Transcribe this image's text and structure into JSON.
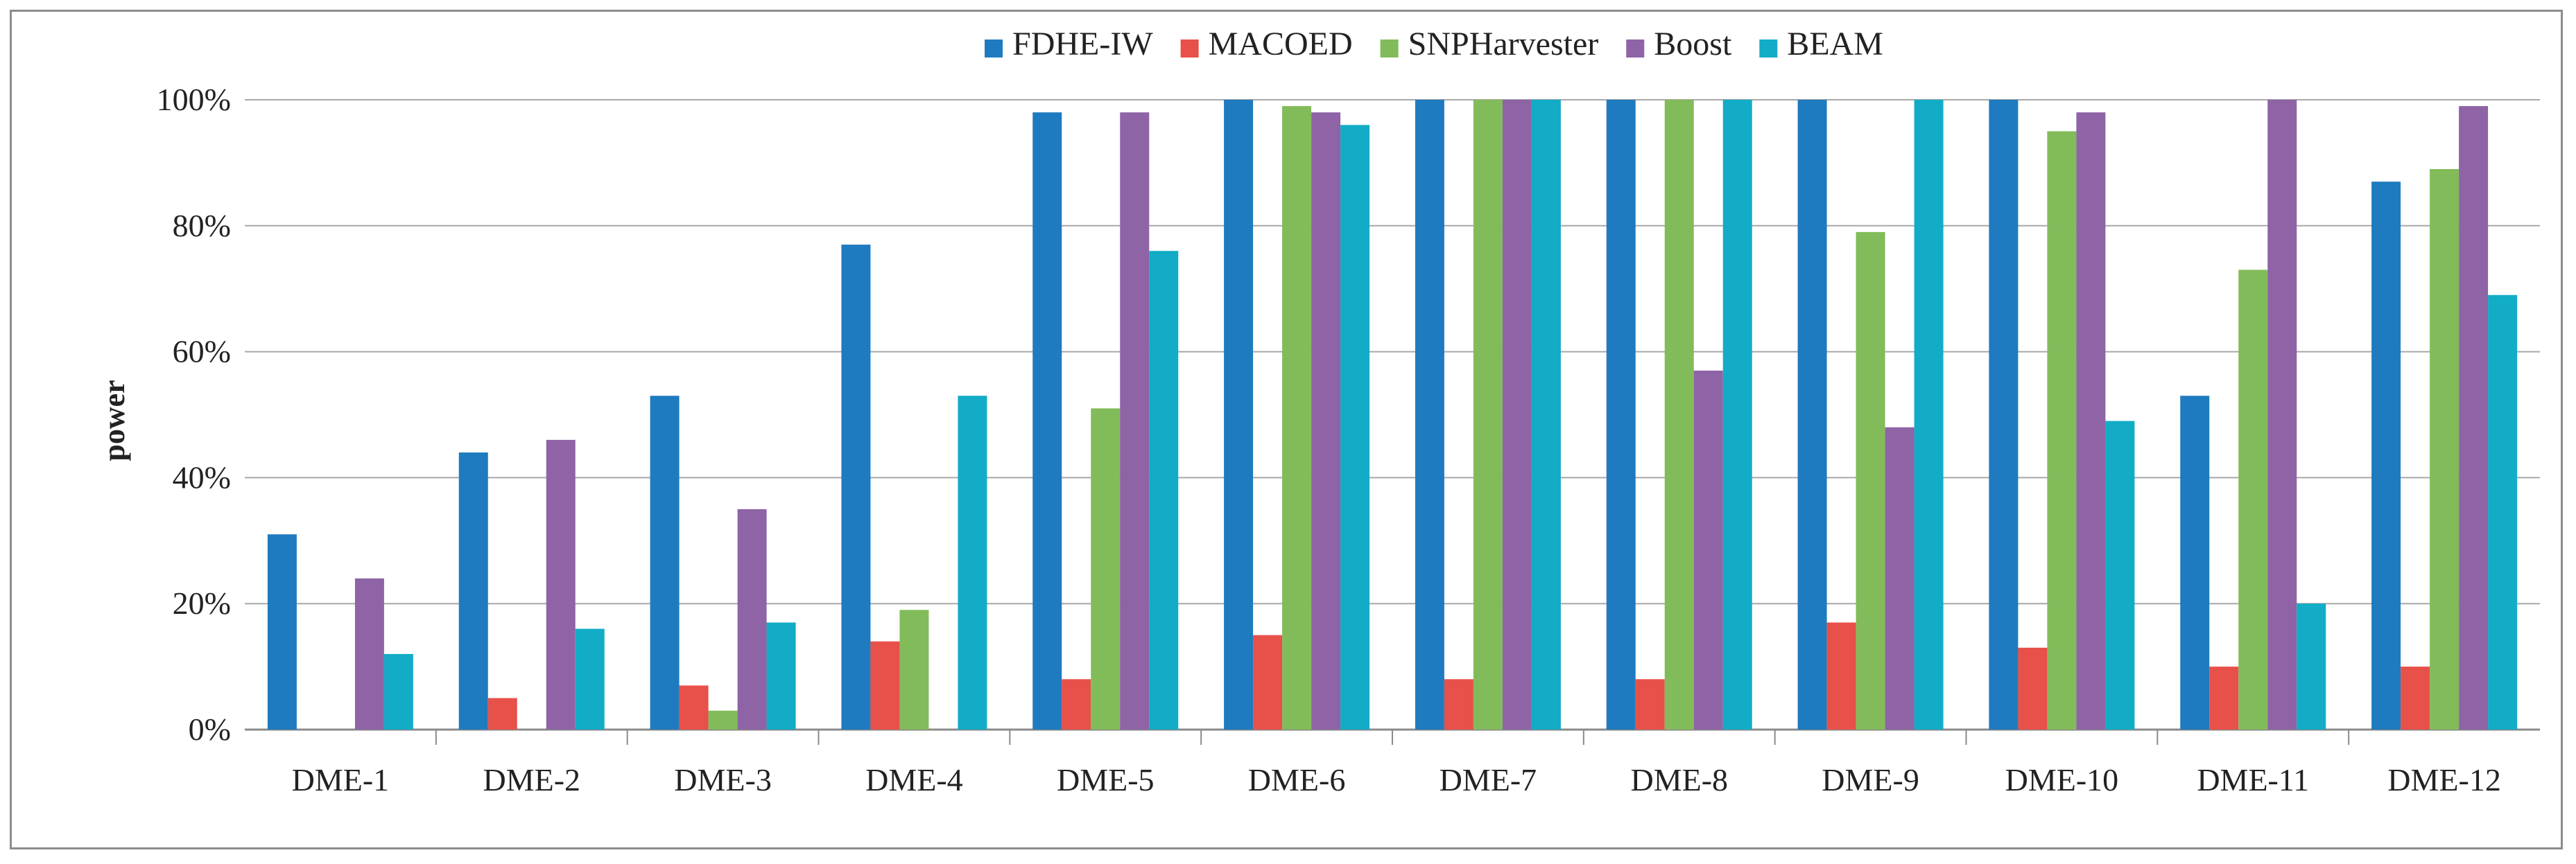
{
  "chart_data": {
    "type": "bar",
    "title": "",
    "xlabel": "",
    "ylabel": "power",
    "ylim": [
      0,
      100
    ],
    "yticks": [
      "0%",
      "20%",
      "40%",
      "60%",
      "80%",
      "100%"
    ],
    "ytick_values": [
      0,
      20,
      40,
      60,
      80,
      100
    ],
    "grid": true,
    "legend_position": "top",
    "categories": [
      "DME-1",
      "DME-2",
      "DME-3",
      "DME-4",
      "DME-5",
      "DME-6",
      "DME-7",
      "DME-8",
      "DME-9",
      "DME-10",
      "DME-11",
      "DME-12"
    ],
    "series": [
      {
        "name": "FDHE-IW",
        "color": "#1f7bbf",
        "values": [
          31,
          44,
          53,
          77,
          98,
          100,
          100,
          100,
          100,
          100,
          53,
          87
        ]
      },
      {
        "name": "MACOED",
        "color": "#e8504a",
        "values": [
          0,
          5,
          7,
          14,
          8,
          15,
          8,
          8,
          17,
          13,
          10,
          10
        ]
      },
      {
        "name": "SNPHarvester",
        "color": "#82bb59",
        "values": [
          0,
          0,
          3,
          19,
          51,
          99,
          100,
          100,
          79,
          95,
          73,
          89
        ]
      },
      {
        "name": "Boost",
        "color": "#8e64a6",
        "values": [
          24,
          46,
          35,
          0,
          98,
          98,
          100,
          57,
          48,
          98,
          100,
          99
        ]
      },
      {
        "name": "BEAM",
        "color": "#12acc6",
        "values": [
          12,
          16,
          17,
          53,
          76,
          96,
          100,
          100,
          100,
          49,
          20,
          69
        ]
      }
    ]
  }
}
